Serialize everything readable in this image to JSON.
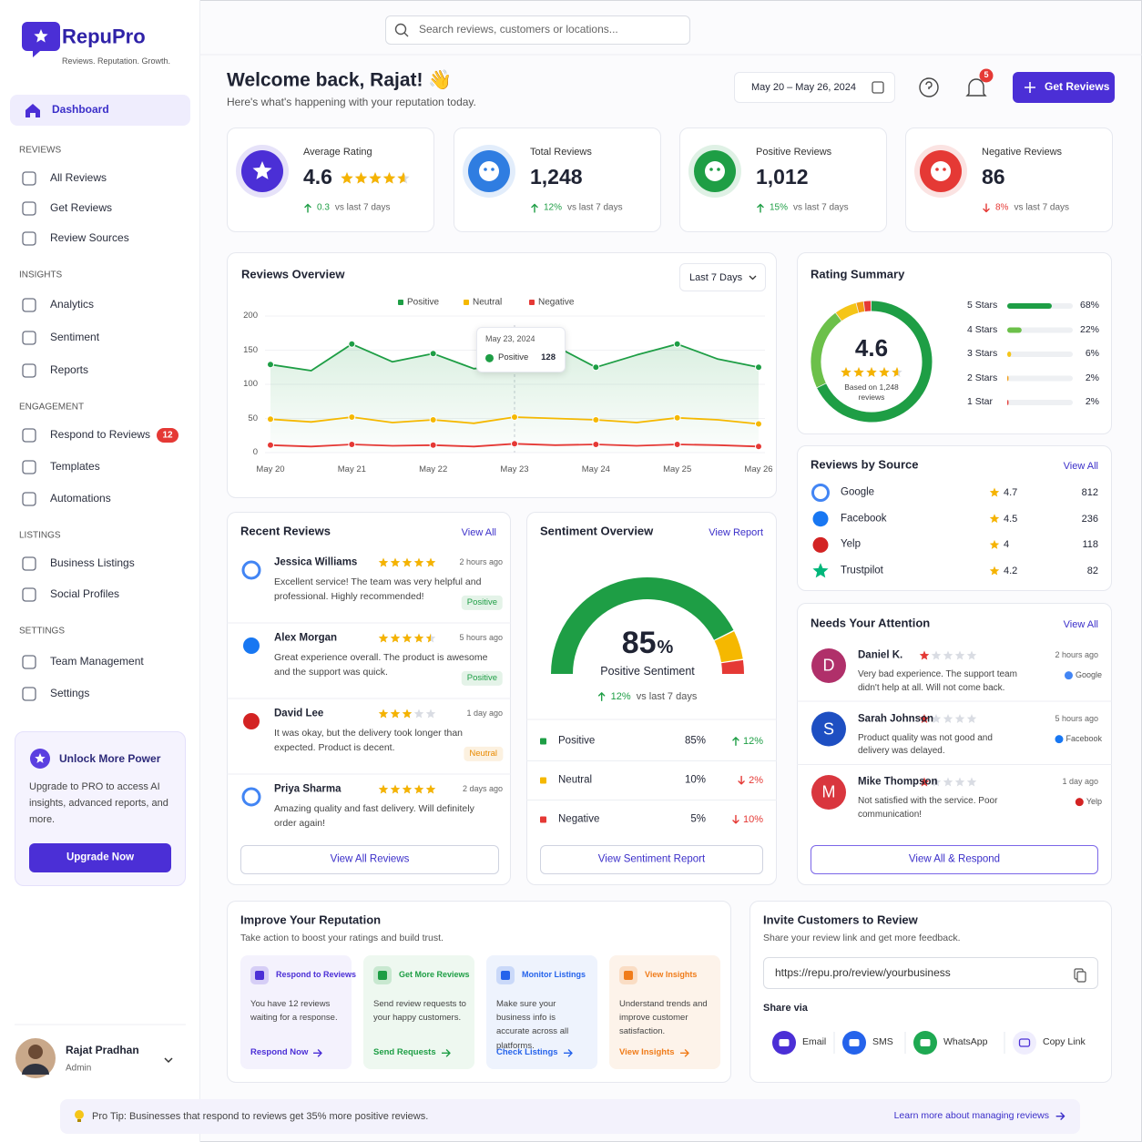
{
  "sidebar": {
    "brand": "RepuPro",
    "tagline": "Reviews. Reputation. Growth.",
    "dashboard": "Dashboard",
    "sections": [
      {
        "title": "REVIEWS",
        "items": [
          {
            "label": "All Reviews"
          },
          {
            "label": "Get Reviews"
          },
          {
            "label": "Review Sources"
          }
        ]
      },
      {
        "title": "INSIGHTS",
        "items": [
          {
            "label": "Analytics"
          },
          {
            "label": "Sentiment"
          },
          {
            "label": "Reports"
          }
        ]
      },
      {
        "title": "ENGAGEMENT",
        "items": [
          {
            "label": "Respond to Reviews",
            "badge": 12
          },
          {
            "label": "Templates"
          },
          {
            "label": "Automations"
          }
        ]
      },
      {
        "title": "LISTINGS",
        "items": [
          {
            "label": "Business Listings"
          },
          {
            "label": "Social Profiles"
          }
        ]
      },
      {
        "title": "SETTINGS",
        "items": [
          {
            "label": "Team Management"
          },
          {
            "label": "Settings"
          }
        ]
      }
    ],
    "promo": {
      "title": "Unlock More Power",
      "text": "Upgrade to PRO to access AI insights, advanced reports, and more.",
      "button": "Upgrade Now"
    },
    "user": {
      "name": "Rajat Pradhan",
      "role": "Admin"
    }
  },
  "header": {
    "search_placeholder": "Search reviews, customers or locations...",
    "welcome": "Welcome back, Rajat! 👋",
    "subtitle": "Here's what's happening with your reputation today.",
    "date_range": "May 20 – May 26, 2024",
    "notifications": 5,
    "cta": "Get Reviews"
  },
  "stats": [
    {
      "label": "Average Rating",
      "value": 4.6,
      "change": "0.3",
      "direction": "up",
      "compare": "vs last 7 days",
      "color": "#4b2fd6"
    },
    {
      "label": "Total Reviews",
      "value": "1,248",
      "change": "12%",
      "direction": "up",
      "compare": "vs last 7 days",
      "color": "#2f7de1"
    },
    {
      "label": "Positive Reviews",
      "value": "1,012",
      "change": "15%",
      "direction": "up",
      "compare": "vs last 7 days",
      "color": "#1e9e45"
    },
    {
      "label": "Negative Reviews",
      "value": "86",
      "change": "8%",
      "direction": "down",
      "compare": "vs last 7 days",
      "color": "#e53935"
    }
  ],
  "chart_data": {
    "type": "line",
    "title": "Reviews Overview",
    "period": "Last 7 Days",
    "categories": [
      "May 20",
      null,
      "May 21",
      null,
      "May 22",
      null,
      "May 23",
      null,
      "May 24",
      null,
      "May 25",
      null,
      "May 26"
    ],
    "series": [
      {
        "name": "Positive",
        "color": "#1e9e45",
        "values": [
          129,
          120,
          159,
          133,
          145,
          123,
          128,
          156,
          125,
          143,
          159,
          137,
          125
        ]
      },
      {
        "name": "Neutral",
        "color": "#f5b800",
        "values": [
          49,
          45,
          52,
          44,
          48,
          43,
          52,
          50,
          48,
          44,
          51,
          48,
          42
        ]
      },
      {
        "name": "Negative",
        "color": "#e53935",
        "values": [
          11,
          9,
          12,
          10,
          11,
          9,
          13,
          11,
          12,
          10,
          12,
          11,
          9
        ]
      }
    ],
    "ylim": [
      0,
      200
    ],
    "yticks": [
      0,
      50,
      100,
      150,
      200
    ],
    "grid": true,
    "tooltip": {
      "date": "May 23, 2024",
      "series": "Positive",
      "value": 128
    }
  },
  "rating_summary": {
    "title": "Rating Summary",
    "average": 4.6,
    "based_on": "Based on 1,248 reviews",
    "rows": [
      {
        "label": "5 Stars",
        "value": 68,
        "value_label": "68%",
        "color": "#1e9e45"
      },
      {
        "label": "4 Stars",
        "value": 22,
        "value_label": "22%",
        "color": "#6cc04a"
      },
      {
        "label": "3 Stars",
        "value": 6,
        "value_label": "6%",
        "color": "#f5c518"
      },
      {
        "label": "2 Stars",
        "value": 2,
        "value_label": "2%",
        "color": "#f39c12"
      },
      {
        "label": "1 Star",
        "value": 2,
        "value_label": "2%",
        "color": "#e53935"
      }
    ]
  },
  "sources": {
    "title": "Reviews by Source",
    "link": "View All",
    "items": [
      {
        "name": "Google",
        "rating": 4.7,
        "count": 812
      },
      {
        "name": "Facebook",
        "rating": 4.5,
        "count": 236
      },
      {
        "name": "Yelp",
        "rating": 4.0,
        "count": 118
      },
      {
        "name": "Trustpilot",
        "rating": 4.2,
        "count": 82
      }
    ]
  },
  "recent_reviews": {
    "title": "Recent Reviews",
    "link": "View All",
    "items": [
      {
        "name": "Jessica Williams",
        "rating": 5,
        "time": "2 hours ago",
        "text": "Excellent service! The team was very helpful and professional. Highly recommended!",
        "sentiment": "Positive",
        "badge_color": "#1e9e45"
      },
      {
        "name": "Alex Morgan",
        "rating": 4.5,
        "time": "5 hours ago",
        "text": "Great experience overall. The product is awesome and the support was quick.",
        "sentiment": "Positive",
        "badge_color": "#1e9e45"
      },
      {
        "name": "David Lee",
        "rating": 3,
        "time": "1 day ago",
        "text": "It was okay, but the delivery took longer than expected. Product is decent.",
        "sentiment": "Neutral",
        "badge_color": "#e98a00"
      },
      {
        "name": "Priya Sharma",
        "rating": 5,
        "time": "2 days ago",
        "text": "Amazing quality and fast delivery. Will definitely order again!"
      }
    ],
    "button": "View All Reviews"
  },
  "sentiment": {
    "title": "Sentiment Overview",
    "link": "View Report",
    "score": 85,
    "unit": "%",
    "label": "Positive Sentiment",
    "change": "12%",
    "compare": "vs last 7 days",
    "rows": [
      {
        "name": "Positive",
        "value": 85,
        "value_label": "85%",
        "change": "12%",
        "direction": "up",
        "color": "#1e9e45"
      },
      {
        "name": "Neutral",
        "value": 10,
        "value_label": "10%",
        "change": "2%",
        "direction": "down",
        "color": "#f5b800"
      },
      {
        "name": "Negative",
        "value": 5,
        "value_label": "5%",
        "change": "10%",
        "direction": "down",
        "color": "#e53935"
      }
    ],
    "button": "View Sentiment Report"
  },
  "attention": {
    "title": "Needs Your Attention",
    "link": "View All",
    "items": [
      {
        "initial": "D",
        "name": "Daniel K.",
        "rating": 1,
        "time": "2 hours ago",
        "text": "Very bad experience. The support team didn't help at all. Will not come back.",
        "source": "Google",
        "color": "#b0306a"
      },
      {
        "initial": "S",
        "name": "Sarah Johnson",
        "rating": 1,
        "time": "5 hours ago",
        "text": "Product quality was not good and delivery was delayed.",
        "source": "Facebook",
        "color": "#1e4fc2"
      },
      {
        "initial": "M",
        "name": "Mike Thompson",
        "rating": 1,
        "time": "1 day ago",
        "text": "Not satisfied with the service. Poor communication!",
        "source": "Yelp",
        "color": "#d9363e"
      }
    ],
    "button": "View All & Respond"
  },
  "improve": {
    "title": "Improve Your Reputation",
    "subtitle": "Take action to boost your ratings and build trust.",
    "cards": [
      {
        "title": "Respond to Reviews",
        "text": "You have 12 reviews waiting for a response.",
        "link": "Respond Now",
        "color": "#4b2fd6",
        "bg": "#f4f2fd"
      },
      {
        "title": "Get More Reviews",
        "text": "Send review requests to your happy customers.",
        "link": "Send Requests",
        "color": "#1e9e45",
        "bg": "#eef8f0"
      },
      {
        "title": "Monitor Listings",
        "text": "Make sure your business info is accurate across all platforms.",
        "link": "Check Listings",
        "color": "#2563eb",
        "bg": "#eef3fd"
      },
      {
        "title": "View Insights",
        "text": "Understand trends and improve customer satisfaction.",
        "link": "View Insights",
        "color": "#f07c1a",
        "bg": "#fdf3ea"
      }
    ]
  },
  "invite": {
    "title": "Invite Customers to Review",
    "subtitle": "Share your review link and get more feedback.",
    "link": "https://repu.pro/review/yourbusiness",
    "share_label": "Share via",
    "channels": [
      {
        "name": "Email",
        "color": "#4b2fd6"
      },
      {
        "name": "SMS",
        "color": "#2563eb"
      },
      {
        "name": "WhatsApp",
        "color": "#1ea952"
      },
      {
        "name": "Copy Link",
        "color": "#4b2fd6"
      }
    ]
  },
  "tip": {
    "text": "Pro Tip: Businesses that respond to reviews get 35% more positive reviews.",
    "link": "Learn more about managing reviews"
  }
}
